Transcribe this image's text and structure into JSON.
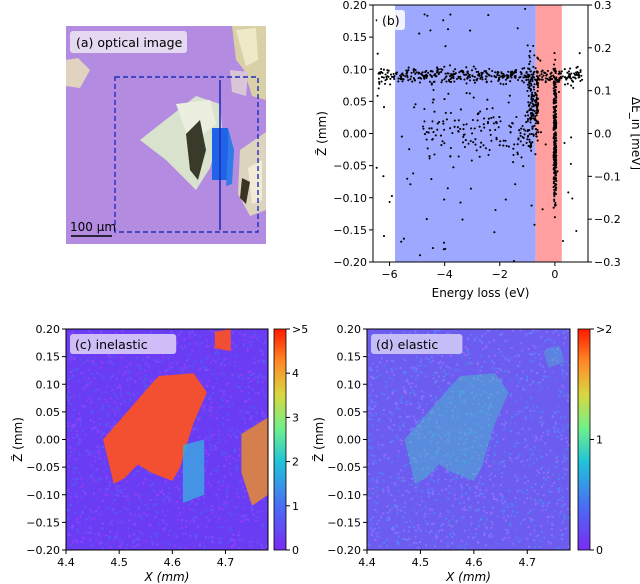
{
  "chart_data": [
    {
      "type": "image",
      "panel": "(a) optical image",
      "scale_bar": "100 μm"
    },
    {
      "type": "scatter",
      "panel": "(b)",
      "xlabel": "Energy loss (eV)",
      "ylabel": "Z̃ (mm)",
      "ylabel_right": "ΔE_in [meV]",
      "xlim": [
        -6.6,
        1.2
      ],
      "ylim": [
        -0.2,
        0.2
      ],
      "ylim_right": [
        -0.3,
        0.3
      ],
      "xticks": [
        "−6",
        "−4",
        "−2",
        "0"
      ],
      "yticks": [
        "−0.20",
        "−0.15",
        "−0.10",
        "−0.05",
        "0.00",
        "0.05",
        "0.10",
        "0.15",
        "0.20"
      ],
      "yticks_right": [
        "−0.3",
        "−0.2",
        "−0.1",
        "0.0",
        "0.1",
        "0.2",
        "0.3"
      ],
      "bands": [
        {
          "from": -5.8,
          "to": -0.7,
          "color": "#9fa8ff"
        },
        {
          "from": -0.7,
          "to": 0.25,
          "color": "#ff9f9f"
        }
      ],
      "clusters": [
        {
          "x_from": -6.4,
          "x_to": 1.0,
          "y_center": 0.09,
          "y_spread": 0.012,
          "n": 420
        },
        {
          "x_from": -4.8,
          "x_to": -0.8,
          "y_center": 0.0,
          "y_spread": 0.05,
          "n": 160
        },
        {
          "x_from": -1.0,
          "x_to": -0.6,
          "y_center": 0.05,
          "y_spread": 0.07,
          "n": 160
        },
        {
          "x_from": -0.05,
          "x_to": 0.05,
          "y_center": 0.0,
          "y_spread": 0.11,
          "n": 260
        },
        {
          "x_from": -6.5,
          "x_to": 1.1,
          "y_center": 0.0,
          "y_spread": 0.2,
          "n": 90
        }
      ]
    },
    {
      "type": "heatmap",
      "panel": "(c) inelastic",
      "xlabel": "X (mm)",
      "ylabel": "Z̃ (mm)",
      "xlim": [
        4.4,
        4.78
      ],
      "ylim": [
        -0.2,
        0.2
      ],
      "xticks": [
        "4.4",
        "4.5",
        "4.6",
        "4.7"
      ],
      "yticks": [
        "−0.20",
        "−0.15",
        "−0.10",
        "−0.05",
        "0.00",
        "0.05",
        "0.10",
        "0.15",
        "0.20"
      ],
      "colorbar_ticks": [
        "0",
        "1",
        "2",
        "3",
        "4",
        ">5"
      ],
      "colorbar_range": [
        0,
        5
      ]
    },
    {
      "type": "heatmap",
      "panel": "(d) elastic",
      "xlabel": "X (mm)",
      "ylabel": "Z̃ (mm)",
      "xlim": [
        4.4,
        4.78
      ],
      "ylim": [
        -0.2,
        0.2
      ],
      "xticks": [
        "4.4",
        "4.5",
        "4.6",
        "4.7"
      ],
      "yticks": [
        "−0.20",
        "−0.15",
        "−0.10",
        "−0.05",
        "0.00",
        "0.05",
        "0.10",
        "0.15",
        "0.20"
      ],
      "colorbar_ticks": [
        "0",
        "1",
        ">2"
      ],
      "colorbar_range": [
        0,
        2
      ]
    }
  ]
}
